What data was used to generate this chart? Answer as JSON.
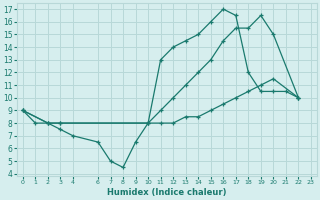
{
  "line1_x": [
    0,
    1,
    2,
    3,
    4,
    6,
    7,
    8,
    9,
    10,
    11,
    12,
    13,
    14,
    15,
    16,
    17,
    18,
    19,
    20,
    21,
    22
  ],
  "line1_y": [
    9,
    8,
    8,
    7.5,
    7,
    6.5,
    5,
    4.5,
    6.5,
    8,
    13,
    14,
    14.5,
    15,
    16,
    17,
    16.5,
    12,
    10.5,
    10.5,
    10.5,
    10
  ],
  "line2_x": [
    0,
    2,
    3,
    10,
    11,
    12,
    13,
    14,
    15,
    16,
    17,
    18,
    19,
    20,
    22
  ],
  "line2_y": [
    9,
    8,
    8,
    8,
    9,
    10,
    11,
    12,
    13,
    14.5,
    15.5,
    15.5,
    16.5,
    15,
    10
  ],
  "line3_x": [
    0,
    2,
    3,
    10,
    11,
    12,
    13,
    14,
    15,
    16,
    17,
    18,
    19,
    20,
    22
  ],
  "line3_y": [
    9,
    8,
    8,
    8,
    8,
    8,
    8.5,
    8.5,
    9,
    9.5,
    10,
    10.5,
    11,
    11.5,
    10
  ],
  "line_color": "#1a7a6e",
  "bg_color": "#d6eeee",
  "grid_color": "#b8d8d8",
  "xlabel": "Humidex (Indice chaleur)",
  "ylim": [
    3.8,
    17.5
  ],
  "xlim": [
    -0.5,
    23.5
  ],
  "yticks": [
    4,
    5,
    6,
    7,
    8,
    9,
    10,
    11,
    12,
    13,
    14,
    15,
    16,
    17
  ],
  "xticks": [
    0,
    1,
    2,
    3,
    4,
    6,
    7,
    8,
    9,
    10,
    11,
    12,
    13,
    14,
    15,
    16,
    17,
    18,
    19,
    20,
    21,
    22,
    23
  ],
  "xtick_labels": [
    "0",
    "1",
    "2",
    "3",
    "4",
    "6",
    "7",
    "8",
    "9",
    "10",
    "11",
    "12",
    "13",
    "14",
    "15",
    "16",
    "17",
    "18",
    "19",
    "20",
    "21",
    "22",
    "23"
  ]
}
